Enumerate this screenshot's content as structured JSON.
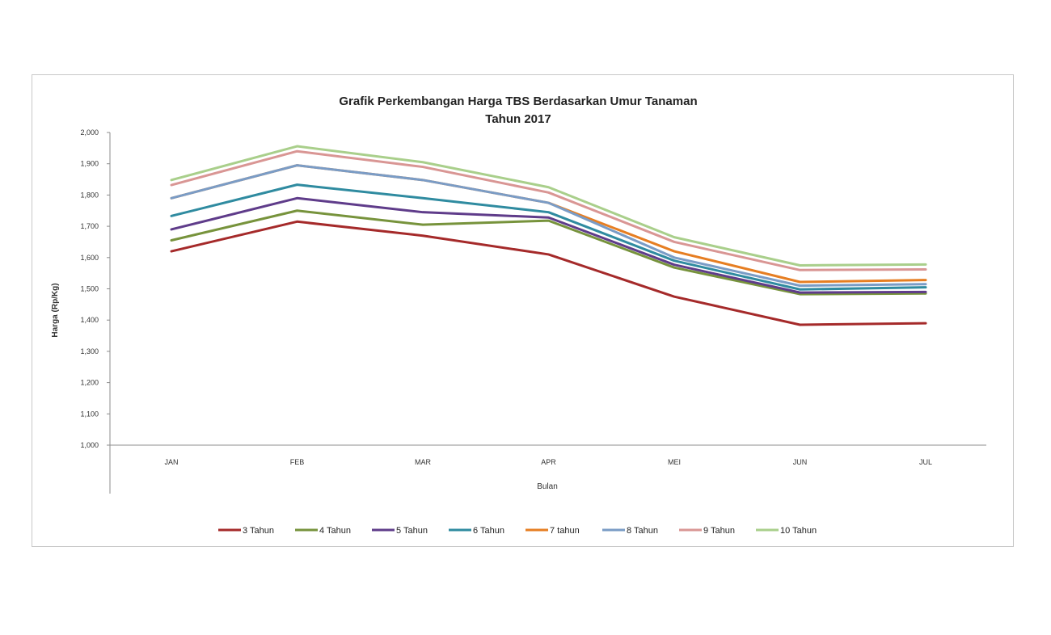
{
  "chart_data": {
    "type": "line",
    "title": "Grafik Perkembangan Harga TBS Berdasarkan Umur Tanaman",
    "subtitle": "Tahun 2017",
    "xlabel": "Bulan",
    "ylabel": "Harga (Rp/Kg)",
    "ylim": [
      1000,
      2000
    ],
    "yticks": [
      1000,
      1100,
      1200,
      1300,
      1400,
      1500,
      1600,
      1700,
      1800,
      1900,
      2000
    ],
    "ytick_labels": [
      "1,000",
      "1,100",
      "1,200",
      "1,300",
      "1,400",
      "1,500",
      "1,600",
      "1,700",
      "1,800",
      "1,900",
      "2,000"
    ],
    "categories": [
      "JAN",
      "FEB",
      "MAR",
      "APR",
      "MEI",
      "JUN",
      "JUL"
    ],
    "grid": false,
    "legend_position": "bottom",
    "series": [
      {
        "name": "3 Tahun",
        "color": "#a52a2a",
        "values": [
          1620,
          1715,
          1670,
          1610,
          1475,
          1385,
          1390
        ]
      },
      {
        "name": "4 Tahun",
        "color": "#77933c",
        "values": [
          1655,
          1750,
          1705,
          1718,
          1568,
          1483,
          1485
        ]
      },
      {
        "name": "5 Tahun",
        "color": "#5f3c8a",
        "values": [
          1690,
          1790,
          1745,
          1728,
          1577,
          1488,
          1490
        ]
      },
      {
        "name": "6 Tahun",
        "color": "#2f8ba0",
        "values": [
          1733,
          1833,
          1790,
          1745,
          1590,
          1498,
          1505
        ]
      },
      {
        "name": "7 tahun",
        "color": "#e67e22",
        "values": [
          1790,
          1895,
          1848,
          1775,
          1620,
          1522,
          1528
        ]
      },
      {
        "name": "8 Tahun",
        "color": "#7a9cc6",
        "values": [
          1790,
          1895,
          1848,
          1775,
          1600,
          1510,
          1515
        ]
      },
      {
        "name": "9 Tahun",
        "color": "#d99694",
        "values": [
          1832,
          1940,
          1890,
          1808,
          1650,
          1560,
          1562
        ]
      },
      {
        "name": "10 Tahun",
        "color": "#a9cf8b",
        "values": [
          1848,
          1956,
          1905,
          1825,
          1665,
          1575,
          1578
        ]
      }
    ]
  }
}
